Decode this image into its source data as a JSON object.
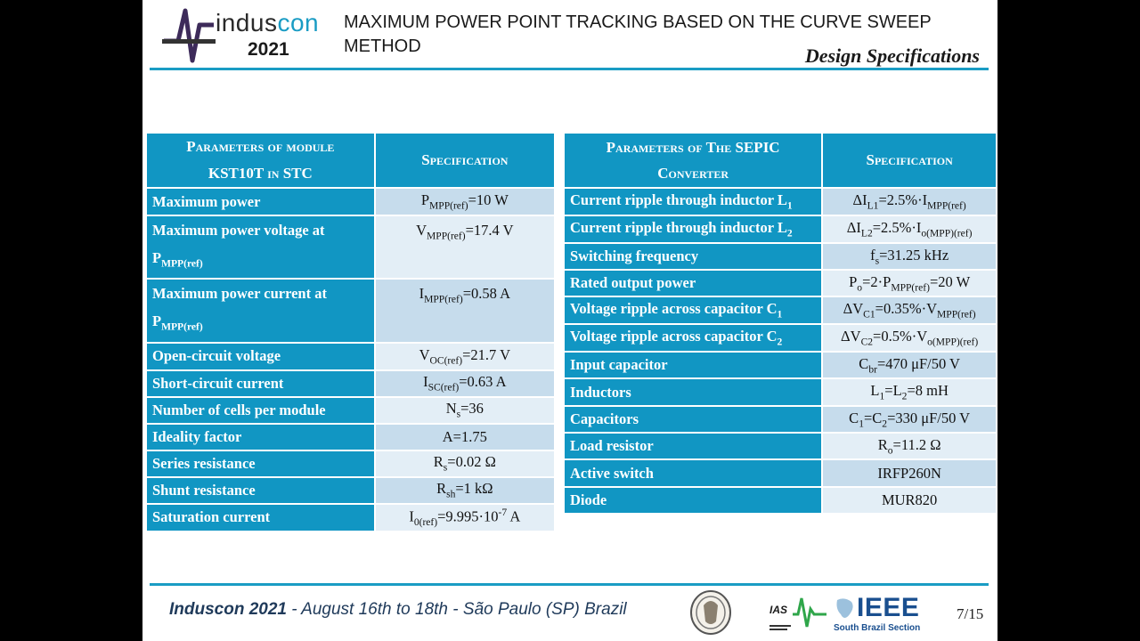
{
  "header": {
    "logo_brand_a": "indus",
    "logo_brand_b": "con",
    "logo_year": "2021",
    "title": "MAXIMUM POWER POINT TRACKING BASED ON THE CURVE SWEEP METHOD",
    "subtitle": "Design Specifications"
  },
  "table_module": {
    "header_param_1": "Parameters of module",
    "header_param_2": "KST10T in STC",
    "header_spec": "Specification",
    "rows": [
      {
        "param": "Maximum power",
        "sym": "P",
        "sub": "MPP(ref)",
        "val": "=10 W"
      },
      {
        "param": "Maximum power voltage at",
        "param_sym": "P",
        "param_sub": "MPP(ref)",
        "sym": "V",
        "sub": "MPP(ref)",
        "val": "=17.4 V"
      },
      {
        "param": "Maximum power current at",
        "param_sym": "P",
        "param_sub": "MPP(ref)",
        "sym": "I",
        "sub": "MPP(ref)",
        "val": "=0.58 A"
      },
      {
        "param": "Open-circuit voltage",
        "sym": "V",
        "sub": "OC(ref)",
        "val": "=21.7 V"
      },
      {
        "param": "Short-circuit current",
        "sym": "I",
        "sub": "SC(ref)",
        "val": "=0.63 A"
      },
      {
        "param": "Number of cells per module",
        "sym": "N",
        "sub": "s",
        "val": "=36"
      },
      {
        "param": "Ideality factor",
        "val": "A=1.75"
      },
      {
        "param": "Series resistance",
        "sym": "R",
        "sub": "s",
        "val": "=0.02 Ω"
      },
      {
        "param": "Shunt resistance",
        "sym": "R",
        "sub": "sh",
        "val": "=1 kΩ"
      },
      {
        "param": "Saturation current",
        "sym": "I",
        "sub": "0(ref)",
        "val": "=9.995·10",
        "sup": "-7",
        "val2": " A"
      }
    ]
  },
  "table_sepic": {
    "header_param_1": "Parameters of The SEPIC",
    "header_param_2": "Converter",
    "header_spec": "Specification",
    "rows": [
      {
        "param": "Current ripple through inductor L",
        "psub": "1",
        "s1": "ΔI",
        "sub1": "L1",
        "s2": "=2.5%·I",
        "sub2": "MPP(ref)"
      },
      {
        "param": "Current ripple through inductor L",
        "psub": "2",
        "s1": "ΔI",
        "sub1": "L2",
        "s2": "=2.5%·I",
        "sub2": "o(MPP)(ref)"
      },
      {
        "param": "Switching frequency",
        "s1": "f",
        "sub1": "s",
        "s2": "=31.25 kHz"
      },
      {
        "param": "Rated output power",
        "s1": "P",
        "sub1": "o",
        "s2": "=2·P",
        "sub2": "MPP(ref)",
        "s3": "=20 W"
      },
      {
        "param": "Voltage ripple across capacitor C",
        "psub": "1",
        "s1": "ΔV",
        "sub1": "C1",
        "s2": "=0.35%·V",
        "sub2": "MPP(ref)"
      },
      {
        "param": "Voltage ripple across capacitor C",
        "psub": "2",
        "s1": "ΔV",
        "sub1": "C2",
        "s2": "=0.5%·V",
        "sub2": "o(MPP)(ref)"
      },
      {
        "param": "Input capacitor",
        "s1": "C",
        "sub1": "br",
        "s2": "=470 μF/50 V"
      },
      {
        "param": "Inductors",
        "s1": "L",
        "sub1": "1",
        "s2": "=L",
        "sub2": "2",
        "s3": "=8 mH"
      },
      {
        "param": "Capacitors",
        "s1": "C",
        "sub1": "1",
        "s2": "=C",
        "sub2": "2",
        "s3": "=330 μF/50 V"
      },
      {
        "param": "Load resistor",
        "s1": "R",
        "sub1": "o",
        "s2": "=11.2 Ω"
      },
      {
        "param": "Active switch",
        "s1": "IRFP260N"
      },
      {
        "param": "Diode",
        "s1": "MUR820"
      }
    ]
  },
  "footer": {
    "conf": "Induscon 2021",
    "date_a": " - August 16",
    "th1": "th",
    "date_b": " to 18",
    "th2": "th",
    "date_c": " - São Paulo (SP)  Brazil",
    "ieee": "IEEE",
    "ieee_section": "South Brazil Section",
    "ias": "IAS",
    "page": "7/15"
  },
  "colors": {
    "accent": "#1196c3",
    "row_a": "#c6dcec",
    "row_b": "#e3eef6",
    "footer_text": "#1f3a5a"
  }
}
